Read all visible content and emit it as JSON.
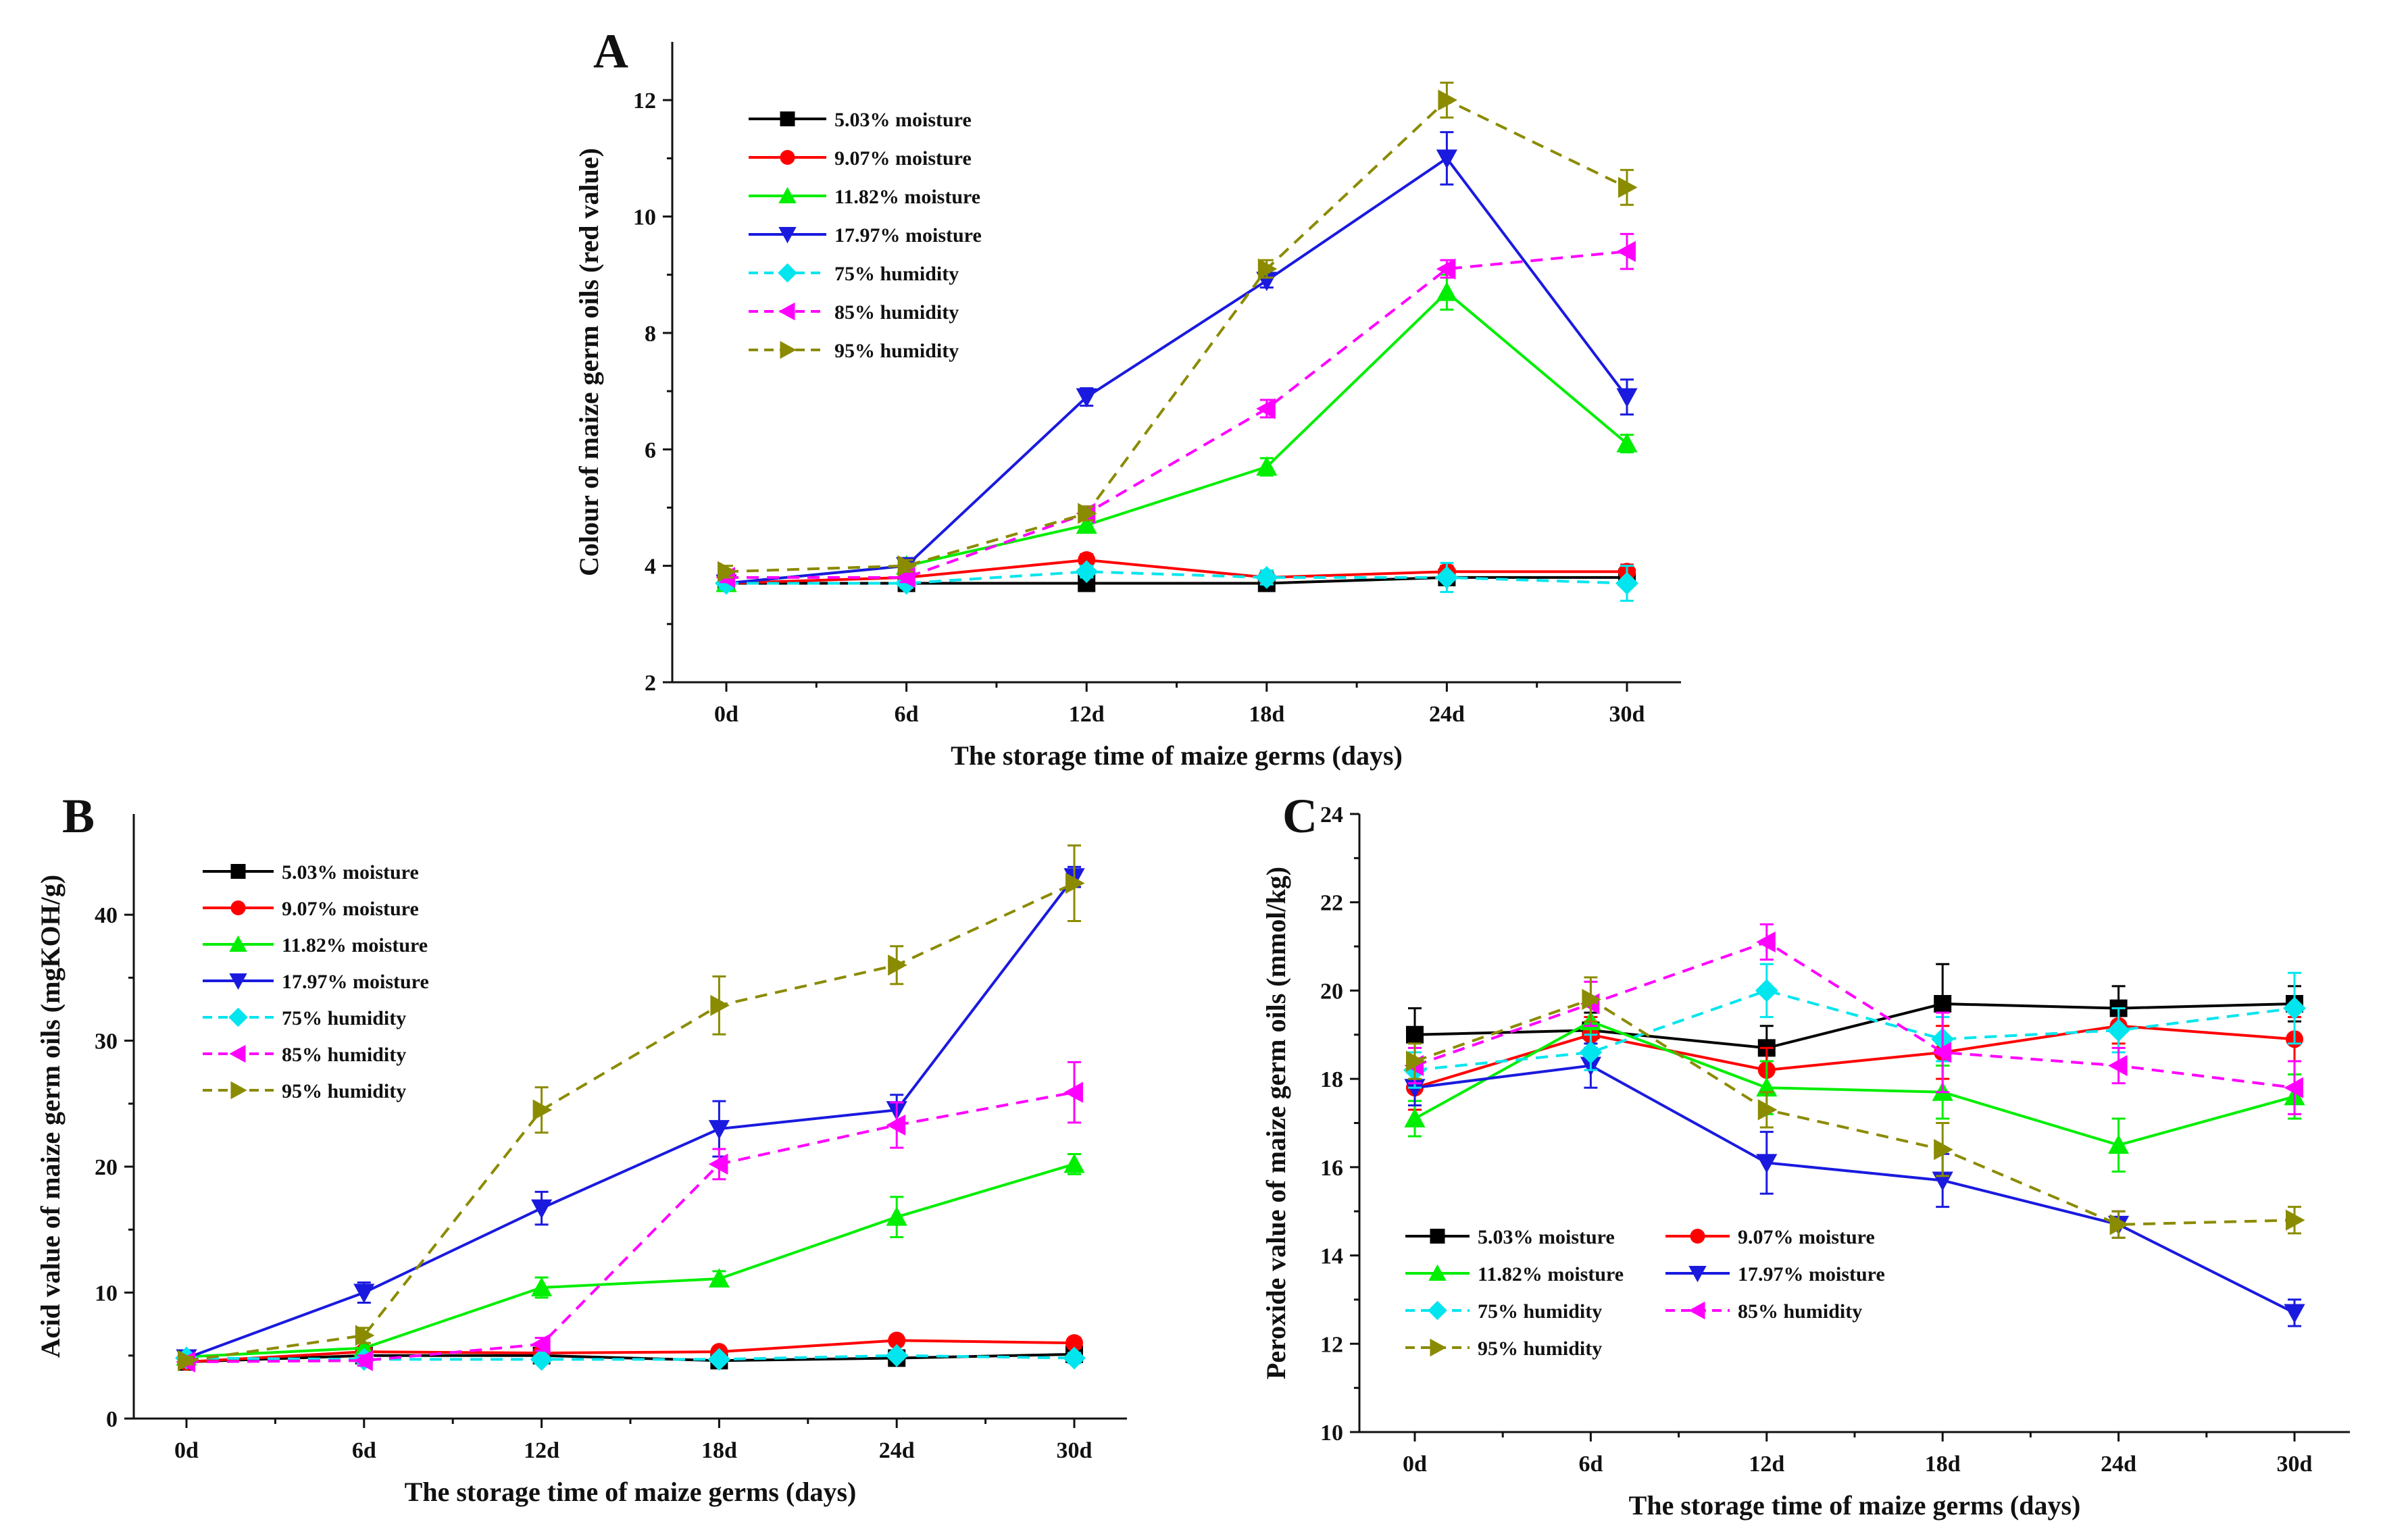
{
  "figure": {
    "panels": [
      "A",
      "B",
      "C"
    ]
  },
  "chart_data": [
    {
      "panel": "A",
      "type": "line",
      "title": "",
      "xlabel": "The storage time of maize germs (days)",
      "ylabel": "Colour of  maize germ oils (red value)",
      "categories": [
        "0d",
        "6d",
        "12d",
        "18d",
        "24d",
        "30d"
      ],
      "ylim": [
        2,
        13
      ],
      "yticks": [
        2,
        4,
        6,
        8,
        10,
        12
      ],
      "legend_position": "top-left",
      "series": [
        {
          "name": "5.03% moisture",
          "color": "#000000",
          "marker": "square",
          "dashed": false,
          "values": [
            3.7,
            3.7,
            3.7,
            3.7,
            3.8,
            3.8
          ],
          "errors": [
            0.08,
            0.06,
            0.08,
            0.08,
            0.1,
            0.12
          ]
        },
        {
          "name": "9.07%  moisture",
          "color": "#ff0000",
          "marker": "circle",
          "dashed": false,
          "values": [
            3.7,
            3.8,
            4.1,
            3.8,
            3.9,
            3.9
          ],
          "errors": [
            0.08,
            0.08,
            0.1,
            0.12,
            0.1,
            0.12
          ]
        },
        {
          "name": "11.82%  moisture",
          "color": "#00ee00",
          "marker": "triangle-up",
          "dashed": false,
          "values": [
            3.7,
            4.0,
            4.7,
            5.7,
            8.7,
            6.1
          ],
          "errors": [
            0.08,
            0.1,
            0.12,
            0.15,
            0.3,
            0.15
          ]
        },
        {
          "name": "17.97%  moisture",
          "color": "#1a1adf",
          "marker": "triangle-down",
          "dashed": false,
          "values": [
            3.7,
            4.0,
            6.9,
            8.9,
            11.0,
            6.9
          ],
          "errors": [
            0.08,
            0.1,
            0.15,
            0.12,
            0.45,
            0.3
          ]
        },
        {
          "name": "75% humidity",
          "color": "#00e5ee",
          "marker": "diamond",
          "dashed": true,
          "values": [
            3.7,
            3.7,
            3.9,
            3.8,
            3.8,
            3.7
          ],
          "errors": [
            0.1,
            0.08,
            0.1,
            0.12,
            0.25,
            0.3
          ]
        },
        {
          "name": "85% humidity",
          "color": "#ff00ff",
          "marker": "triangle-left",
          "dashed": true,
          "values": [
            3.8,
            3.8,
            4.9,
            6.7,
            9.1,
            9.4
          ],
          "errors": [
            0.08,
            0.08,
            0.12,
            0.15,
            0.15,
            0.3
          ]
        },
        {
          "name": "95% humidity",
          "color": "#8b8b00",
          "marker": "triangle-right",
          "dashed": true,
          "values": [
            3.9,
            4.0,
            4.9,
            9.1,
            12.0,
            10.5
          ],
          "errors": [
            0.1,
            0.1,
            0.12,
            0.15,
            0.3,
            0.3
          ]
        }
      ]
    },
    {
      "panel": "B",
      "type": "line",
      "title": "",
      "xlabel": "The storage time of maize germs (days)",
      "ylabel": "Acid value of maize germ oils (mgKOH/g)",
      "categories": [
        "0d",
        "6d",
        "12d",
        "18d",
        "24d",
        "30d"
      ],
      "ylim": [
        0,
        48
      ],
      "yticks": [
        0,
        10,
        20,
        30,
        40
      ],
      "legend_position": "top-left",
      "series": [
        {
          "name": "5.03% moisture",
          "color": "#000000",
          "marker": "square",
          "dashed": false,
          "values": [
            4.5,
            5.0,
            5.0,
            4.6,
            4.8,
            5.1
          ],
          "errors": [
            0.3,
            0.3,
            0.3,
            0.3,
            0.3,
            0.4
          ]
        },
        {
          "name": "9.07%  moisture",
          "color": "#ff0000",
          "marker": "circle",
          "dashed": false,
          "values": [
            4.5,
            5.3,
            5.2,
            5.3,
            6.2,
            6.0
          ],
          "errors": [
            0.3,
            0.3,
            0.3,
            0.3,
            0.4,
            0.4
          ]
        },
        {
          "name": "11.82%  moisture",
          "color": "#00ee00",
          "marker": "triangle-up",
          "dashed": false,
          "values": [
            4.9,
            5.6,
            10.4,
            11.1,
            16.0,
            20.2
          ],
          "errors": [
            0.3,
            0.4,
            0.8,
            0.6,
            1.6,
            0.8
          ]
        },
        {
          "name": "17.97%  moisture",
          "color": "#1a1adf",
          "marker": "triangle-down",
          "dashed": false,
          "values": [
            4.8,
            10.0,
            16.7,
            23.0,
            24.5,
            43.0
          ],
          "errors": [
            0.3,
            0.8,
            1.3,
            2.2,
            1.2,
            0.8
          ]
        },
        {
          "name": "75% humidity",
          "color": "#00e5ee",
          "marker": "diamond",
          "dashed": true,
          "values": [
            4.8,
            4.7,
            4.7,
            4.7,
            5.0,
            4.8
          ],
          "errors": [
            0.3,
            0.3,
            0.3,
            0.3,
            0.3,
            0.4
          ]
        },
        {
          "name": "85% humidity",
          "color": "#ff00ff",
          "marker": "triangle-left",
          "dashed": true,
          "values": [
            4.5,
            4.6,
            5.9,
            20.2,
            23.3,
            25.9
          ],
          "errors": [
            0.3,
            0.4,
            0.5,
            1.2,
            1.8,
            2.4
          ]
        },
        {
          "name": "95% humidity",
          "color": "#8b8b00",
          "marker": "triangle-right",
          "dashed": true,
          "values": [
            4.6,
            6.6,
            24.5,
            32.8,
            36.0,
            42.5
          ],
          "errors": [
            0.3,
            0.6,
            1.8,
            2.3,
            1.5,
            3.0
          ]
        }
      ]
    },
    {
      "panel": "C",
      "type": "line",
      "title": "",
      "xlabel": "The storage time of maize germs (days)",
      "ylabel": "Peroxide value of maize germ oils (mmol/kg)",
      "categories": [
        "0d",
        "6d",
        "12d",
        "18d",
        "24d",
        "30d"
      ],
      "ylim": [
        10,
        24
      ],
      "yticks": [
        10,
        12,
        14,
        16,
        18,
        20,
        22,
        24
      ],
      "legend_position": "bottom-left",
      "series": [
        {
          "name": "5.03% moisture",
          "color": "#000000",
          "marker": "square",
          "dashed": false,
          "values": [
            19.0,
            19.1,
            18.7,
            19.7,
            19.6,
            19.7
          ],
          "errors": [
            0.6,
            0.4,
            0.5,
            0.9,
            0.5,
            0.4
          ]
        },
        {
          "name": "9.07%  moisture",
          "color": "#ff0000",
          "marker": "circle",
          "dashed": false,
          "values": [
            17.8,
            19.0,
            18.2,
            18.6,
            19.2,
            18.9
          ],
          "errors": [
            0.5,
            0.4,
            0.5,
            0.6,
            0.4,
            0.5
          ]
        },
        {
          "name": "11.82%  moisture",
          "color": "#00ee00",
          "marker": "triangle-up",
          "dashed": false,
          "values": [
            17.1,
            19.3,
            17.8,
            17.7,
            16.5,
            17.6
          ],
          "errors": [
            0.4,
            0.5,
            0.6,
            0.6,
            0.6,
            0.5
          ]
        },
        {
          "name": "17.97%  moisture",
          "color": "#1a1adf",
          "marker": "triangle-down",
          "dashed": false,
          "values": [
            17.8,
            18.3,
            16.1,
            15.7,
            14.7,
            12.7
          ],
          "errors": [
            0.4,
            0.5,
            0.7,
            0.6,
            0.3,
            0.3
          ]
        },
        {
          "name": "75% humidity",
          "color": "#00e5ee",
          "marker": "diamond",
          "dashed": true,
          "values": [
            18.2,
            18.6,
            20.0,
            18.9,
            19.1,
            19.6
          ],
          "errors": [
            0.4,
            0.4,
            0.6,
            0.5,
            0.5,
            0.8
          ]
        },
        {
          "name": "85% humidity",
          "color": "#ff00ff",
          "marker": "triangle-left",
          "dashed": true,
          "values": [
            18.3,
            19.7,
            21.1,
            18.6,
            18.3,
            17.8
          ],
          "errors": [
            0.4,
            0.5,
            0.4,
            0.9,
            0.4,
            0.6
          ]
        },
        {
          "name": "95% humidity",
          "color": "#8b8b00",
          "marker": "triangle-right",
          "dashed": true,
          "values": [
            18.4,
            19.8,
            17.3,
            16.4,
            14.7,
            14.8
          ],
          "errors": [
            0.4,
            0.5,
            0.4,
            0.6,
            0.3,
            0.3
          ]
        }
      ]
    }
  ]
}
